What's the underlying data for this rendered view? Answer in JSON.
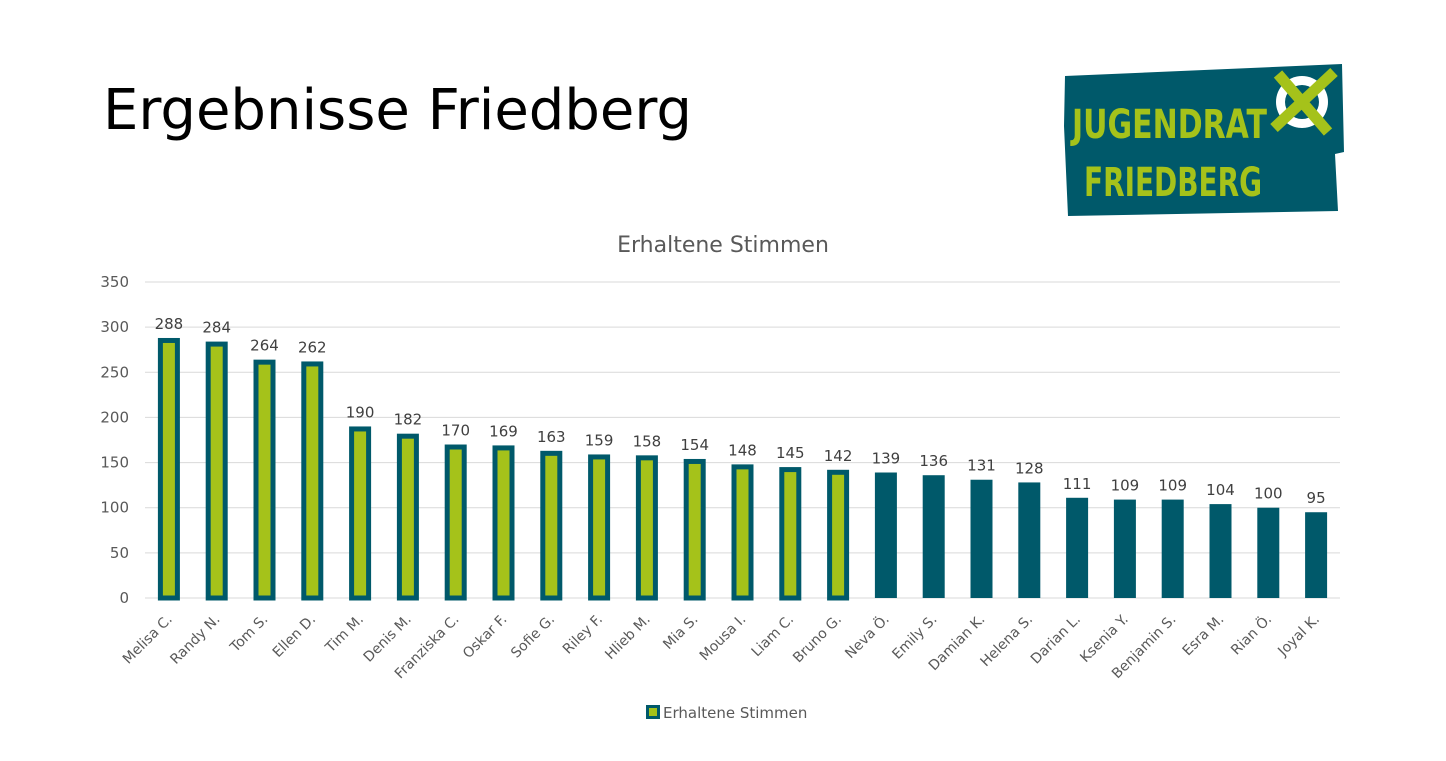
{
  "slide": {
    "title": "Ergebnisse Friedberg"
  },
  "logo": {
    "line1": "JUGENDRAT",
    "line2": "FRIEDBERG"
  },
  "colors": {
    "dark": "#00596a",
    "accent": "#a5c21a",
    "grid": "#d9d9d9",
    "text": "#595959"
  },
  "chart_data": {
    "type": "bar",
    "title": "Erhaltene Stimmen",
    "xlabel": "",
    "ylabel": "",
    "ylim": [
      0,
      350
    ],
    "yticks": [
      0,
      50,
      100,
      150,
      200,
      250,
      300,
      350
    ],
    "grid": true,
    "legend_position": "bottom",
    "categories": [
      "Melisa C.",
      "Randy N.",
      "Tom S.",
      "Ellen D.",
      "Tim M.",
      "Denis M.",
      "Franziska C.",
      "Oskar F.",
      "Sofie G.",
      "Riley F.",
      "Hlieb M.",
      "Mia S.",
      "Mousa I.",
      "Liam C.",
      "Bruno G.",
      "Neva Ö.",
      "Emily S.",
      "Damian K.",
      "Helena S.",
      "Darian L.",
      "Ksenia Y.",
      "Benjamin S.",
      "Esra M.",
      "Rian Ö.",
      "Joyal K."
    ],
    "series": [
      {
        "name": "Erhaltene Stimmen",
        "values": [
          288,
          284,
          264,
          262,
          190,
          182,
          170,
          169,
          163,
          159,
          158,
          154,
          148,
          145,
          142,
          139,
          136,
          131,
          128,
          111,
          109,
          109,
          104,
          100,
          95
        ],
        "highlighted": [
          true,
          true,
          true,
          true,
          true,
          true,
          true,
          true,
          true,
          true,
          true,
          true,
          true,
          true,
          true,
          false,
          false,
          false,
          false,
          false,
          false,
          false,
          false,
          false,
          false
        ]
      }
    ]
  }
}
